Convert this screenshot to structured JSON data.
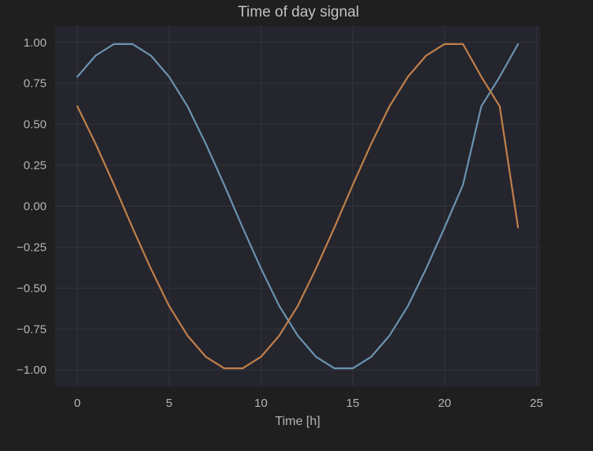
{
  "chart_data": {
    "type": "line",
    "title": "Time of day signal",
    "xlabel": "Time [h]",
    "ylabel": "",
    "xlim": [
      -1.2,
      25.2
    ],
    "ylim": [
      -1.1,
      1.1
    ],
    "xticks": [
      0,
      5,
      10,
      15,
      20,
      25
    ],
    "yticks": [
      1.0,
      0.75,
      0.5,
      0.25,
      0.0,
      -0.25,
      -0.5,
      -0.75,
      -1.0
    ],
    "xtick_labels": [
      "0",
      "5",
      "10",
      "15",
      "20",
      "25"
    ],
    "ytick_labels": [
      "1.00",
      "0.75",
      "0.50",
      "0.25",
      "0.00",
      "−0.25",
      "−0.50",
      "−0.75",
      "−1.00"
    ],
    "grid": true,
    "x": [
      0,
      1,
      2,
      3,
      4,
      5,
      6,
      7,
      8,
      9,
      10,
      11,
      12,
      13,
      14,
      15,
      16,
      17,
      18,
      19,
      20,
      21,
      22,
      23,
      24
    ],
    "series": [
      {
        "color": "#6a93b0",
        "values": [
          0.79,
          0.92,
          0.99,
          0.99,
          0.92,
          0.79,
          0.61,
          0.38,
          0.13,
          -0.13,
          -0.38,
          -0.61,
          -0.79,
          -0.92,
          -0.99,
          -0.99,
          -0.92,
          -0.79,
          -0.61,
          -0.38,
          -0.13,
          0.13,
          0.61,
          0.79,
          0.99
        ]
      },
      {
        "color": "#c0804a",
        "values": [
          0.61,
          0.38,
          0.13,
          -0.13,
          -0.38,
          -0.61,
          -0.79,
          -0.92,
          -0.99,
          -0.99,
          -0.92,
          -0.79,
          -0.61,
          -0.38,
          -0.13,
          0.13,
          0.38,
          0.61,
          0.79,
          0.92,
          0.99,
          0.99,
          0.79,
          0.61,
          -0.13
        ]
      }
    ],
    "colors": {
      "figure_bg": "#1f1f20",
      "plot_bg": "#25252e",
      "grid": "#34343c",
      "text": "#b4b4b4"
    }
  }
}
